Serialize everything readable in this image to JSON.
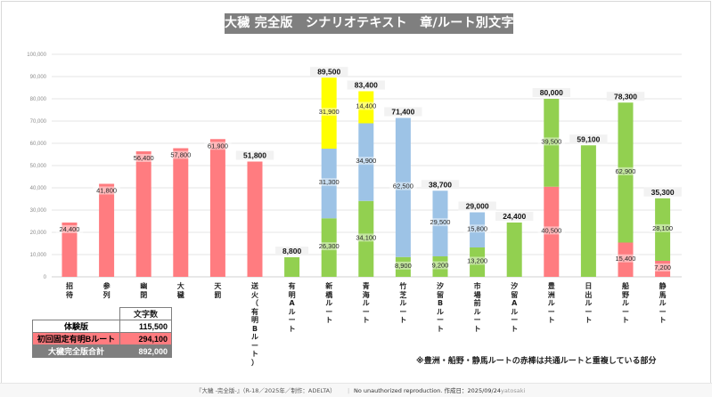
{
  "title": "大穢 完全版　シナリオテキスト　章/ルート別文字数",
  "colors": {
    "red": "#ff7c80",
    "green": "#92d050",
    "blue": "#9dc3e6",
    "yellow": "#ffff00",
    "grid": "#e6e6e6",
    "title_bg": "#7f7f7f"
  },
  "chart_data": {
    "type": "bar",
    "stacked": true,
    "title": "大穢 完全版　シナリオテキスト　章/ルート別文字数",
    "xlabel": "",
    "ylabel": "",
    "ylim": [
      0,
      100000
    ],
    "yticks": [
      0,
      10000,
      20000,
      30000,
      40000,
      50000,
      60000,
      70000,
      80000,
      90000,
      100000
    ],
    "ytick_labels": [
      "0",
      "10,000",
      "20,000",
      "30,000",
      "40,000",
      "50,000",
      "60,000",
      "70,000",
      "80,000",
      "90,000",
      "100,000"
    ],
    "grid": true,
    "legend": "none",
    "categories": [
      "招待",
      "参列",
      "幽閉",
      "大穢",
      "天罰",
      "送火（有明Bルート）",
      "有明Aルート",
      "新橋ルート",
      "青海ルート",
      "竹芝ルート",
      "汐留Bルート",
      "市場前ルート",
      "汐留Aルート",
      "豊洲ルート",
      "日出ルート",
      "船野ルート",
      "静馬ルート"
    ],
    "bars": [
      {
        "category": "招待",
        "total": 24400,
        "total_label": "",
        "segments": [
          {
            "color": "red",
            "value": 24400,
            "label": "24,400"
          }
        ]
      },
      {
        "category": "参列",
        "total": 41800,
        "total_label": "",
        "segments": [
          {
            "color": "red",
            "value": 41800,
            "label": "41,800"
          }
        ]
      },
      {
        "category": "幽閉",
        "total": 56400,
        "total_label": "",
        "segments": [
          {
            "color": "red",
            "value": 56400,
            "label": "56,400"
          }
        ]
      },
      {
        "category": "大穢",
        "total": 57800,
        "total_label": "",
        "segments": [
          {
            "color": "red",
            "value": 57800,
            "label": "57,800"
          }
        ]
      },
      {
        "category": "天罰",
        "total": 61900,
        "total_label": "",
        "segments": [
          {
            "color": "red",
            "value": 61900,
            "label": "61,900"
          }
        ]
      },
      {
        "category": "送火（有明Bルート）",
        "total": 51800,
        "total_label": "51,800",
        "segments": [
          {
            "color": "red",
            "value": 51800,
            "label": ""
          }
        ]
      },
      {
        "category": "有明Aルート",
        "total": 8800,
        "total_label": "8,800",
        "segments": [
          {
            "color": "green",
            "value": 8800,
            "label": ""
          }
        ]
      },
      {
        "category": "新橋ルート",
        "total": 89500,
        "total_label": "89,500",
        "segments": [
          {
            "color": "green",
            "value": 26300,
            "label": "26,300"
          },
          {
            "color": "blue",
            "value": 31300,
            "label": "31,300"
          },
          {
            "color": "yellow",
            "value": 31900,
            "label": "31,900"
          }
        ]
      },
      {
        "category": "青海ルート",
        "total": 83400,
        "total_label": "83,400",
        "segments": [
          {
            "color": "green",
            "value": 34100,
            "label": "34,100"
          },
          {
            "color": "blue",
            "value": 34900,
            "label": "34,900"
          },
          {
            "color": "yellow",
            "value": 14400,
            "label": "14,400"
          }
        ]
      },
      {
        "category": "竹芝ルート",
        "total": 71400,
        "total_label": "71,400",
        "segments": [
          {
            "color": "green",
            "value": 8900,
            "label": "8,900"
          },
          {
            "color": "blue",
            "value": 62500,
            "label": "62,500"
          }
        ]
      },
      {
        "category": "汐留Bルート",
        "total": 38700,
        "total_label": "38,700",
        "segments": [
          {
            "color": "green",
            "value": 9200,
            "label": "9,200"
          },
          {
            "color": "blue",
            "value": 29500,
            "label": "29,500"
          }
        ]
      },
      {
        "category": "市場前ルート",
        "total": 29000,
        "total_label": "29,000",
        "segments": [
          {
            "color": "green",
            "value": 13200,
            "label": "13,200"
          },
          {
            "color": "blue",
            "value": 15800,
            "label": "15,800"
          }
        ]
      },
      {
        "category": "汐留Aルート",
        "total": 24400,
        "total_label": "24,400",
        "segments": [
          {
            "color": "green",
            "value": 24400,
            "label": ""
          }
        ]
      },
      {
        "category": "豊洲ルート",
        "total": 80000,
        "total_label": "80,000",
        "segments": [
          {
            "color": "red",
            "value": 40500,
            "label": "40,500"
          },
          {
            "color": "green",
            "value": 39500,
            "label": "39,500"
          }
        ]
      },
      {
        "category": "日出ルート",
        "total": 59100,
        "total_label": "59,100",
        "segments": [
          {
            "color": "green",
            "value": 59100,
            "label": ""
          }
        ]
      },
      {
        "category": "船野ルート",
        "total": 78300,
        "total_label": "78,300",
        "segments": [
          {
            "color": "red",
            "value": 15400,
            "label": "15,400"
          },
          {
            "color": "green",
            "value": 62900,
            "label": "62,900"
          }
        ]
      },
      {
        "category": "静馬ルート",
        "total": 35300,
        "total_label": "35,300",
        "segments": [
          {
            "color": "red",
            "value": 7200,
            "label": "7,200"
          },
          {
            "color": "green",
            "value": 28100,
            "label": "28,100"
          }
        ]
      }
    ]
  },
  "summary": {
    "header": "文字数",
    "rows": [
      {
        "label": "体験版",
        "value": "115,500"
      },
      {
        "label": "初回固定有明Bルート",
        "value": "294,100"
      },
      {
        "label": "大穢完全版合計",
        "value": "892,000"
      }
    ]
  },
  "note": "※豊洲・船野・静馬ルートの赤棒は共通ルートと重複している部分",
  "footer": {
    "credit": "『大穢 -完全版-』（R-18／2025年／制作：ADELTA）",
    "separator": "|",
    "rights": "No unauthorized reproduction. 作成日：2025/09/24",
    "author": "yatosaki"
  }
}
